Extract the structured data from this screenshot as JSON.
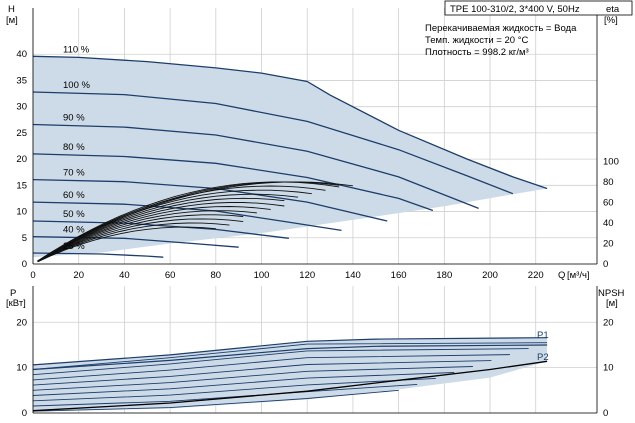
{
  "chart_data": [
    {
      "type": "line",
      "panel": "pump-performance",
      "title": "TPE 100-310/2, 3*400 V, 50Hz",
      "info_lines": [
        "Перекачиваемая жидкость = Вода",
        "Темп. жидкости = 20 °C",
        "Плотность = 998.2 кг/м³"
      ],
      "ylabel": "H",
      "yunit": "[м]",
      "xlabel": "Q",
      "xunit": "[м³/ч]",
      "y2label": "eta",
      "y2unit": "[%]",
      "xlim": [
        0,
        235
      ],
      "ylim": [
        0,
        45
      ],
      "xticks": [
        0,
        20,
        40,
        60,
        80,
        100,
        120,
        140,
        160,
        180,
        200,
        220
      ],
      "yticks": [
        0,
        5,
        10,
        15,
        20,
        25,
        30,
        35,
        40
      ],
      "y2ticks": [
        0,
        20,
        40,
        60,
        80,
        100
      ],
      "y2_range": [
        0,
        230
      ],
      "grid": true,
      "envelope": {
        "upper": [
          [
            0,
            39.6
          ],
          [
            20,
            39.4
          ],
          [
            50,
            38.6
          ],
          [
            80,
            37.4
          ],
          [
            100,
            36.4
          ],
          [
            120,
            34.8
          ],
          [
            130,
            32.2
          ],
          [
            160,
            25.5
          ],
          [
            190,
            20.0
          ],
          [
            210,
            16.6
          ],
          [
            225,
            14.4
          ]
        ],
        "lower": [
          [
            0,
            1.3
          ],
          [
            30,
            2.2
          ],
          [
            60,
            3.9
          ],
          [
            100,
            5.9
          ],
          [
            140,
            8.4
          ],
          [
            180,
            11.0
          ],
          [
            210,
            13.3
          ],
          [
            225,
            14.4
          ]
        ]
      },
      "head_curves": [
        {
          "label": "110 %",
          "points": [
            [
              0,
              39.6
            ],
            [
              20,
              39.4
            ],
            [
              50,
              38.6
            ],
            [
              80,
              37.4
            ],
            [
              100,
              36.4
            ],
            [
              120,
              34.8
            ],
            [
              130,
              32.2
            ],
            [
              160,
              25.5
            ],
            [
              190,
              20.0
            ],
            [
              210,
              16.6
            ],
            [
              225,
              14.4
            ]
          ]
        },
        {
          "label": "100 %",
          "points": [
            [
              0,
              32.8
            ],
            [
              40,
              32.3
            ],
            [
              80,
              30.6
            ],
            [
              120,
              27.2
            ],
            [
              160,
              21.8
            ],
            [
              190,
              16.8
            ],
            [
              210,
              13.4
            ]
          ]
        },
        {
          "label": "90 %",
          "points": [
            [
              0,
              26.6
            ],
            [
              40,
              26.1
            ],
            [
              80,
              24.6
            ],
            [
              120,
              21.5
            ],
            [
              160,
              16.6
            ],
            [
              195,
              10.6
            ]
          ]
        },
        {
          "label": "80 %",
          "points": [
            [
              0,
              21.0
            ],
            [
              40,
              20.5
            ],
            [
              80,
              19.2
            ],
            [
              120,
              16.5
            ],
            [
              160,
              12.5
            ],
            [
              175,
              10.2
            ]
          ]
        },
        {
          "label": "70 %",
          "points": [
            [
              0,
              16.1
            ],
            [
              40,
              15.7
            ],
            [
              80,
              14.4
            ],
            [
              120,
              11.8
            ],
            [
              155,
              8.2
            ]
          ]
        },
        {
          "label": "60 %",
          "points": [
            [
              0,
              11.8
            ],
            [
              40,
              11.4
            ],
            [
              80,
              10.1
            ],
            [
              110,
              8.1
            ],
            [
              135,
              6.4
            ]
          ]
        },
        {
          "label": "50 %",
          "points": [
            [
              0,
              8.2
            ],
            [
              40,
              7.8
            ],
            [
              80,
              6.6
            ],
            [
              112,
              4.9
            ]
          ]
        },
        {
          "label": "40 %",
          "points": [
            [
              0,
              5.2
            ],
            [
              40,
              4.9
            ],
            [
              70,
              3.9
            ],
            [
              90,
              3.2
            ]
          ]
        },
        {
          "label": "25 %",
          "points": [
            [
              0,
              2.1
            ],
            [
              30,
              1.9
            ],
            [
              50,
              1.5
            ],
            [
              57,
              1.3
            ]
          ]
        }
      ]
    },
    {
      "type": "line",
      "panel": "power-npsh",
      "ylabel": "P",
      "yunit": "[кВт]",
      "y2label": "NPSH",
      "y2unit": "[м]",
      "xlim": [
        0,
        235
      ],
      "ylim": [
        0,
        28
      ],
      "yticks": [
        0,
        10,
        20
      ],
      "y2ticks": [
        0,
        10,
        20
      ],
      "grid": true,
      "series": [
        {
          "name": "P1",
          "points": [
            [
              0,
              10.6
            ],
            [
              60,
              12.8
            ],
            [
              120,
              15.8
            ],
            [
              150,
              16.3
            ],
            [
              225,
              16.6
            ]
          ]
        },
        {
          "name": "P2",
          "points": [
            [
              0,
              9.6
            ],
            [
              60,
              11.6
            ],
            [
              120,
              14.2
            ],
            [
              150,
              14.7
            ],
            [
              225,
              15.0
            ]
          ]
        }
      ],
      "npsh_curve": [
        [
          0,
          0.5
        ],
        [
          60,
          2.2
        ],
        [
          120,
          4.8
        ],
        [
          160,
          7.2
        ],
        [
          200,
          9.6
        ],
        [
          225,
          11.4
        ]
      ],
      "envelope": {
        "upper": [
          [
            0,
            10.6
          ],
          [
            60,
            12.8
          ],
          [
            120,
            15.8
          ],
          [
            150,
            16.3
          ],
          [
            225,
            16.6
          ]
        ],
        "lower": [
          [
            0,
            0.3
          ],
          [
            60,
            1.0
          ],
          [
            120,
            3.0
          ],
          [
            160,
            5.2
          ],
          [
            200,
            7.8
          ],
          [
            225,
            11.4
          ]
        ]
      }
    }
  ]
}
